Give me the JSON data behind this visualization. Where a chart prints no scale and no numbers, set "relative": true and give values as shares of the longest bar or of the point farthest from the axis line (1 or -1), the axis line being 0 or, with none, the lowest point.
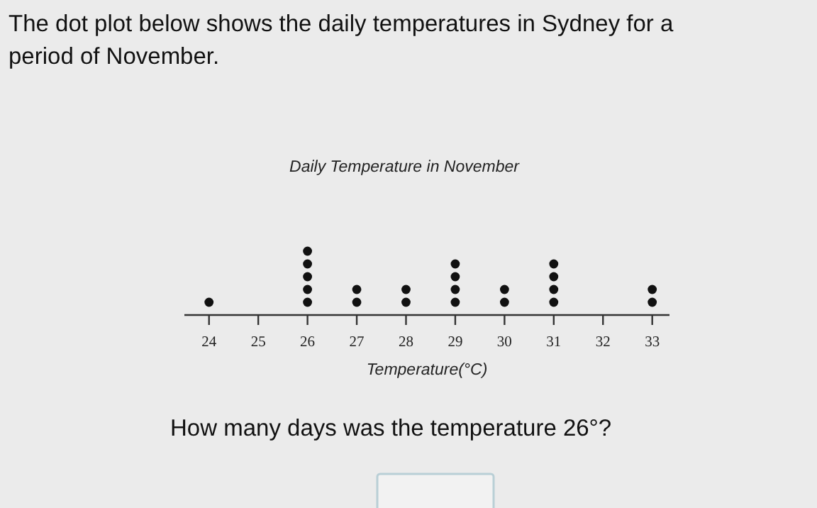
{
  "chart_data": {
    "type": "scatter",
    "title": "Daily Temperature in November",
    "xlabel": "Temperature(°C)",
    "annotations": [
      "The dot plot below shows the daily temperatures in Sydney for a period of November.",
      "How many days was the temperature 26°?"
    ],
    "relative": true,
    "color": "#111111",
    "marker": "circle",
    "grid": false,
    "tick_labels": "x",
    "xlim": [
      23.5,
      33.35
    ],
    "xticks": [
      24,
      25,
      26,
      27,
      28,
      29,
      30,
      31,
      32,
      33
    ],
    "x": [
      24,
      26,
      26,
      26,
      26,
      26,
      27,
      27,
      28,
      28,
      29,
      29,
      29,
      29,
      30,
      30,
      31,
      31,
      31,
      31,
      33,
      33
    ],
    "values": [
      0.2,
      0.2,
      0.4,
      0.6,
      0.8,
      1,
      0.2,
      0.4,
      0.2,
      0.4,
      0.2,
      0.4,
      0.6,
      0.8,
      0.2,
      0.4,
      0.2,
      0.4,
      0.6,
      0.8,
      0.2,
      0.4
    ]
  }
}
